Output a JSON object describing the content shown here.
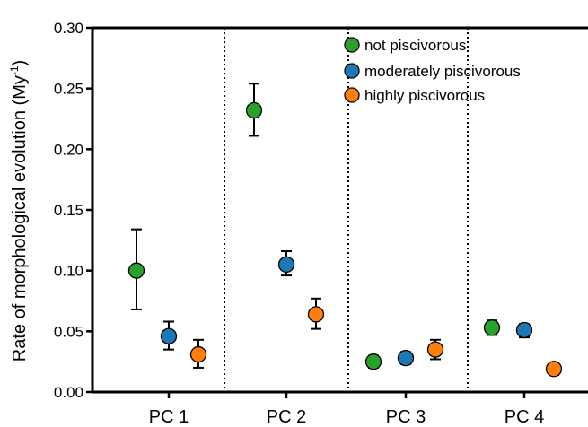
{
  "chart_data": {
    "type": "scatter",
    "subtype": "dot-with-error-bars",
    "title": "",
    "xlabel": "",
    "ylabel": "Rate of morphological evolution (My",
    "ylabel_superscript": "-1",
    "ylabel_suffix": ")",
    "ylim": [
      0.0,
      0.3
    ],
    "yticks": [
      "0.00",
      "0.05",
      "0.10",
      "0.15",
      "0.20",
      "0.25",
      "0.30"
    ],
    "categories": [
      "PC 1",
      "PC 2",
      "PC 3",
      "PC 4"
    ],
    "grid": false,
    "group_separators": "dotted",
    "legend_placement": "top-right",
    "series": [
      {
        "name": "not piscivorous",
        "color": "#2ca02c",
        "values": [
          0.1,
          0.232,
          0.025,
          0.053
        ],
        "err_low": [
          0.068,
          0.211,
          0.02,
          0.047
        ],
        "err_high": [
          0.134,
          0.254,
          0.03,
          0.059
        ]
      },
      {
        "name": "moderately piscivorous",
        "color": "#1f77b4",
        "values": [
          0.046,
          0.105,
          0.028,
          0.051
        ],
        "err_low": [
          0.035,
          0.096,
          0.023,
          0.045
        ],
        "err_high": [
          0.058,
          0.116,
          0.033,
          0.056
        ]
      },
      {
        "name": "highly piscivorous",
        "color": "#ff7f0e",
        "values": [
          0.031,
          0.064,
          0.035,
          0.019
        ],
        "err_low": [
          0.02,
          0.052,
          0.027,
          0.014
        ],
        "err_high": [
          0.043,
          0.077,
          0.043,
          0.024
        ]
      }
    ]
  }
}
